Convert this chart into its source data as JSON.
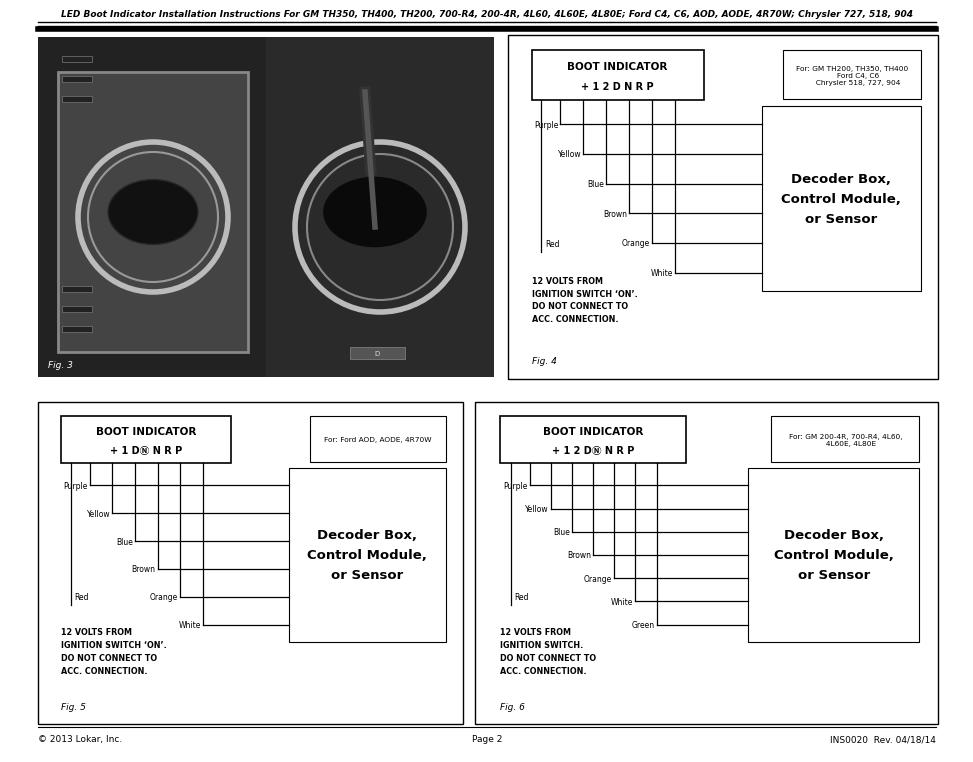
{
  "header_text": "LED Boot Indicator Installation Instructions For GM TH350, TH400, TH200, 700-R4, 200-4R, 4L60, 4L60E, 4L80E; Ford C4, C6, AOD, AODE, 4R70W; Chrysler 727, 518, 904",
  "footer_left": "© 2013 Lokar, Inc.",
  "footer_center": "Page 2",
  "footer_right": "INS0020  Rev. 04/18/14",
  "bg_color": "#ffffff",
  "fig4": {
    "title_line1": "BOOT INDICATOR",
    "title_line2": "+ 1 2 D N R P",
    "for_text": "For: GM TH200, TH350, TH400\n     Ford C4, C6\n     Chrysler 518, 727, 904",
    "wires": [
      "Purple",
      "Yellow",
      "Blue",
      "Brown",
      "Orange",
      "White"
    ],
    "red_label": "Red",
    "decoder_text": "Decoder Box,\nControl Module,\nor Sensor",
    "note": "12 VOLTS FROM\nIGNITION SWITCH ‘ON’.\nDO NOT CONNECT TO\nACC. CONNECTION.",
    "fig_label": "Fig. 4"
  },
  "fig5": {
    "title_line1": "BOOT INDICATOR",
    "title_line2": "+ 1 DⓃ N R P",
    "for_text": "For: Ford AOD, AODE, 4R70W",
    "wires": [
      "Purple",
      "Yellow",
      "Blue",
      "Brown",
      "Orange",
      "White"
    ],
    "red_label": "Red",
    "decoder_text": "Decoder Box,\nControl Module,\nor Sensor",
    "note": "12 VOLTS FROM\nIGNITION SWITCH ‘ON’.\nDO NOT CONNECT TO\nACC. CONNECTION.",
    "fig_label": "Fig. 5"
  },
  "fig6": {
    "title_line1": "BOOT INDICATOR",
    "title_line2": "+ 1 2 DⓃ N R P",
    "for_text": "For: GM 200-4R, 700-R4, 4L60,\n     4L60E, 4L80E",
    "wires": [
      "Purple",
      "Yellow",
      "Blue",
      "Brown",
      "Orange",
      "White",
      "Green"
    ],
    "red_label": "Red",
    "decoder_text": "Decoder Box,\nControl Module,\nor Sensor",
    "note": "12 VOLTS FROM\nIGNITION SWITCH.\nDO NOT CONNECT TO\nACC. CONNECTION.",
    "fig_label": "Fig. 6"
  },
  "photo_bg": "#2a2a2a",
  "photo_divider": "#666666"
}
